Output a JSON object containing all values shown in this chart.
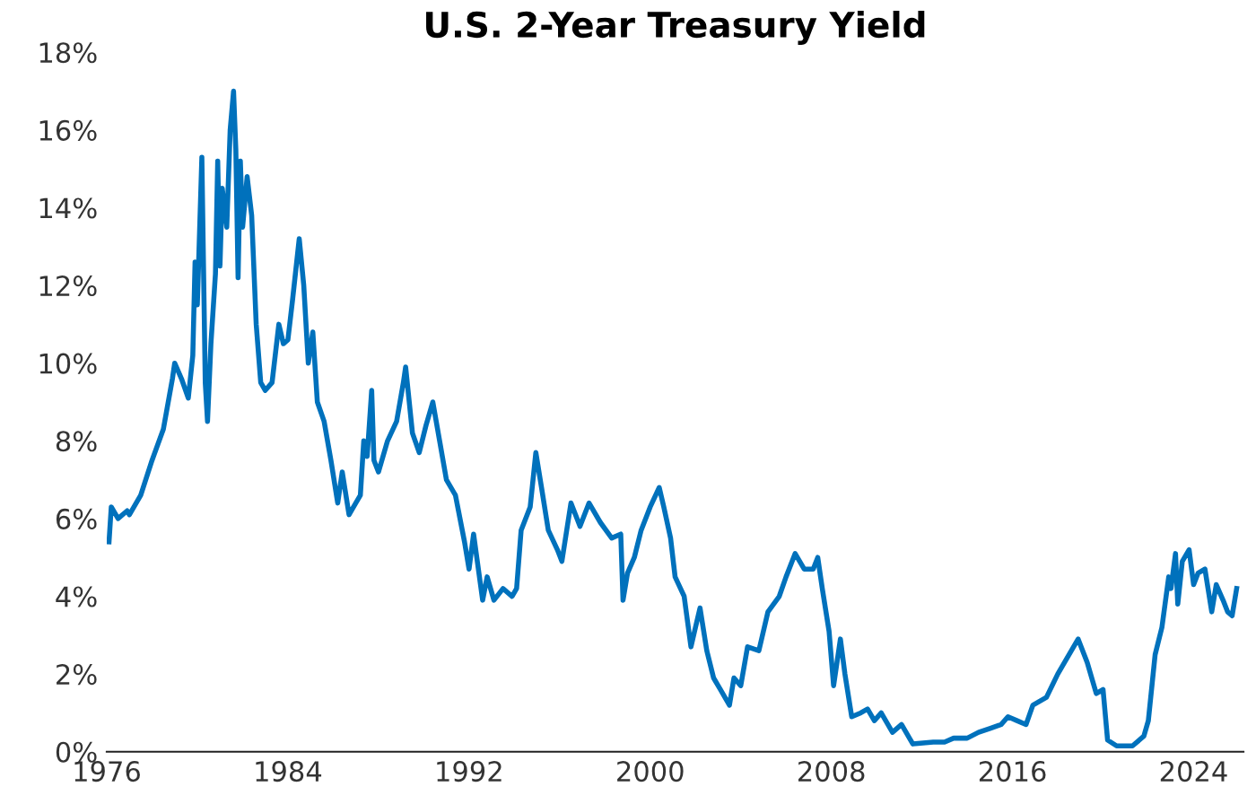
{
  "chart_data": {
    "type": "line",
    "title": "U.S. 2-Year Treasury Yield",
    "series": [
      {
        "color": "#0071bc",
        "x": [
          1976.1,
          1976.2,
          1976.5,
          1976.9,
          1977.0,
          1977.5,
          1978.0,
          1978.5,
          1978.9,
          1979.0,
          1979.3,
          1979.6,
          1979.8,
          1979.9,
          1980.0,
          1980.2,
          1980.35,
          1980.45,
          1980.6,
          1980.8,
          1980.9,
          1981.0,
          1981.1,
          1981.3,
          1981.45,
          1981.6,
          1981.7,
          1981.8,
          1981.9,
          1982.0,
          1982.2,
          1982.4,
          1982.6,
          1982.8,
          1983.0,
          1983.3,
          1983.6,
          1983.8,
          1984.0,
          1984.2,
          1984.5,
          1984.7,
          1984.9,
          1985.1,
          1985.3,
          1985.6,
          1985.9,
          1986.2,
          1986.4,
          1986.7,
          1986.9,
          1987.2,
          1987.35,
          1987.5,
          1987.7,
          1987.8,
          1988.0,
          1988.4,
          1988.8,
          1989.1,
          1989.2,
          1989.5,
          1989.8,
          1990.1,
          1990.4,
          1990.7,
          1991.0,
          1991.4,
          1991.8,
          1992.0,
          1992.2,
          1992.6,
          1992.8,
          1993.1,
          1993.5,
          1993.9,
          1994.1,
          1994.3,
          1994.7,
          1994.95,
          1995.2,
          1995.5,
          1995.9,
          1996.1,
          1996.5,
          1996.9,
          1997.3,
          1997.8,
          1998.3,
          1998.7,
          1998.8,
          1999.0,
          1999.3,
          1999.6,
          2000.0,
          2000.4,
          2000.6,
          2000.9,
          2001.1,
          2001.5,
          2001.8,
          2002.0,
          2002.2,
          2002.5,
          2002.8,
          2003.1,
          2003.5,
          2003.7,
          2004.0,
          2004.3,
          2004.8,
          2005.2,
          2005.7,
          2006.0,
          2006.4,
          2006.8,
          2007.2,
          2007.4,
          2007.6,
          2007.9,
          2008.1,
          2008.4,
          2008.6,
          2008.9,
          2009.3,
          2009.6,
          2009.9,
          2010.2,
          2010.7,
          2011.1,
          2011.6,
          2012.5,
          2013.0,
          2013.4,
          2014.0,
          2014.5,
          2015.0,
          2015.5,
          2015.8,
          2016.2,
          2016.6,
          2016.9,
          2017.5,
          2018.0,
          2018.9,
          2019.3,
          2019.7,
          2020.0,
          2020.2,
          2020.6,
          2021.3,
          2021.8,
          2022.0,
          2022.3,
          2022.6,
          2022.9,
          2023.0,
          2023.2,
          2023.3,
          2023.5,
          2023.8,
          2024.0,
          2024.2,
          2024.5,
          2024.8,
          2025.0,
          2025.3,
          2025.5,
          2025.7,
          2025.9
        ],
        "values": [
          5.4,
          6.3,
          6.0,
          6.2,
          6.1,
          6.6,
          7.5,
          8.3,
          9.6,
          10.0,
          9.6,
          9.1,
          10.2,
          12.6,
          11.5,
          15.3,
          9.5,
          8.5,
          10.5,
          12.3,
          15.2,
          12.5,
          14.5,
          13.5,
          16.0,
          17.0,
          15.5,
          12.2,
          15.2,
          13.5,
          14.8,
          13.8,
          11.0,
          9.5,
          9.3,
          9.5,
          11.0,
          10.5,
          10.6,
          11.6,
          13.2,
          12.0,
          10.0,
          10.8,
          9.0,
          8.5,
          7.5,
          6.4,
          7.2,
          6.1,
          6.3,
          6.6,
          8.0,
          7.6,
          9.3,
          7.5,
          7.2,
          8.0,
          8.5,
          9.5,
          9.9,
          8.2,
          7.7,
          8.4,
          9.0,
          8.0,
          7.0,
          6.6,
          5.4,
          4.7,
          5.6,
          3.9,
          4.5,
          3.9,
          4.2,
          4.0,
          4.2,
          5.7,
          6.3,
          7.7,
          6.8,
          5.7,
          5.2,
          4.9,
          6.4,
          5.8,
          6.4,
          5.9,
          5.5,
          5.6,
          3.9,
          4.6,
          5.0,
          5.7,
          6.3,
          6.8,
          6.3,
          5.5,
          4.5,
          4.0,
          2.7,
          3.2,
          3.7,
          2.6,
          1.9,
          1.6,
          1.2,
          1.9,
          1.7,
          2.7,
          2.6,
          3.6,
          4.0,
          4.5,
          5.1,
          4.7,
          4.7,
          5.0,
          4.2,
          3.1,
          1.7,
          2.9,
          2.0,
          0.9,
          1.0,
          1.1,
          0.8,
          1.0,
          0.5,
          0.7,
          0.2,
          0.25,
          0.25,
          0.35,
          0.35,
          0.5,
          0.6,
          0.7,
          0.9,
          0.8,
          0.7,
          1.2,
          1.4,
          2.0,
          2.9,
          2.3,
          1.5,
          1.6,
          0.3,
          0.15,
          0.15,
          0.4,
          0.8,
          2.5,
          3.2,
          4.5,
          4.2,
          5.1,
          3.8,
          4.9,
          5.2,
          4.3,
          4.6,
          4.7,
          3.6,
          4.3,
          3.9,
          3.6,
          3.5,
          4.2
        ]
      }
    ],
    "xlim": [
      1976,
      2026.2
    ],
    "xticks": [
      1976,
      1984,
      1992,
      2000,
      2008,
      2016,
      2024
    ],
    "ylim": [
      0,
      18
    ],
    "yticks": [
      {
        "value": 0,
        "label": "0%"
      },
      {
        "value": 2,
        "label": "2%"
      },
      {
        "value": 4,
        "label": "4%"
      },
      {
        "value": 6,
        "label": "6%"
      },
      {
        "value": 8,
        "label": "8%"
      },
      {
        "value": 10,
        "label": "10%"
      },
      {
        "value": 12,
        "label": "12%"
      },
      {
        "value": 14,
        "label": "14%"
      },
      {
        "value": 16,
        "label": "16%"
      },
      {
        "value": 18,
        "label": "18%"
      }
    ],
    "grid": false,
    "legend": false,
    "marker": "none",
    "line_style": "solid"
  }
}
